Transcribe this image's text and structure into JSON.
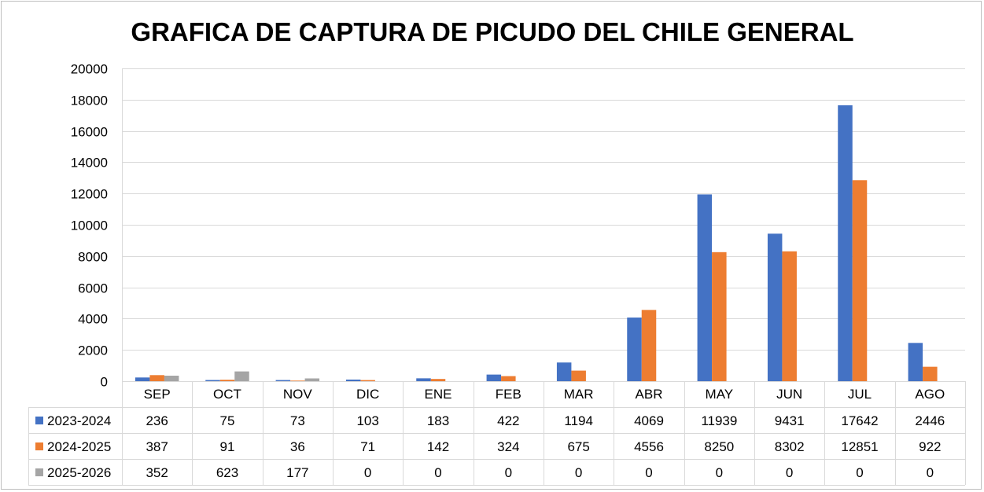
{
  "chart_data": {
    "type": "bar",
    "title": "GRAFICA DE CAPTURA DE PICUDO DEL CHILE GENERAL",
    "categories": [
      "SEP",
      "OCT",
      "NOV",
      "DIC",
      "ENE",
      "FEB",
      "MAR",
      "ABR",
      "MAY",
      "JUN",
      "JUL",
      "AGO"
    ],
    "series": [
      {
        "name": "2023-2024",
        "color": "#4472c4",
        "values": [
          236,
          75,
          73,
          103,
          183,
          422,
          1194,
          4069,
          11939,
          9431,
          17642,
          2446
        ]
      },
      {
        "name": "2024-2025",
        "color": "#ed7d31",
        "values": [
          387,
          91,
          36,
          71,
          142,
          324,
          675,
          4556,
          8250,
          8302,
          12851,
          922
        ]
      },
      {
        "name": "2025-2026",
        "color": "#a5a5a5",
        "values": [
          352,
          623,
          177,
          0,
          0,
          0,
          0,
          0,
          0,
          0,
          0,
          0
        ]
      }
    ],
    "ylim": [
      0,
      20000
    ],
    "yticks": [
      "0",
      "2000",
      "4000",
      "6000",
      "8000",
      "10000",
      "12000",
      "14000",
      "16000",
      "18000",
      "20000"
    ],
    "grid": true,
    "legend": "data-table",
    "data_table": true
  }
}
